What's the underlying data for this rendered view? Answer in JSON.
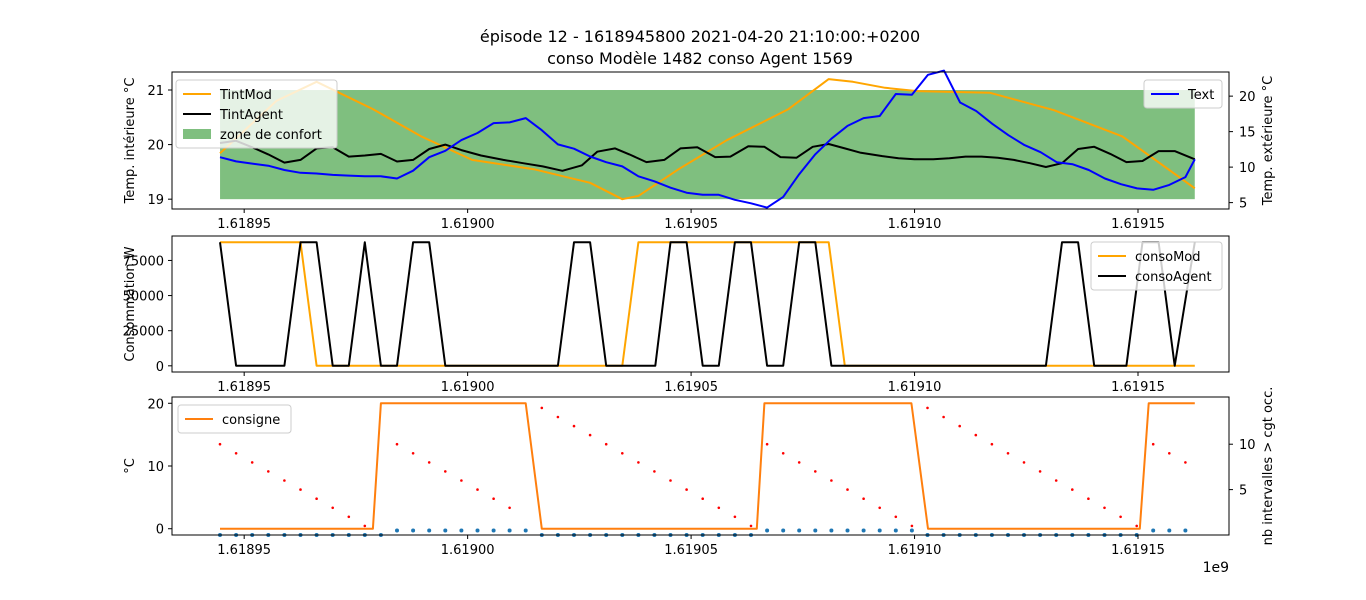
{
  "figure": {
    "title_line1": "épisode 12 - 1618945800 2021-04-20 21:10:00:+0200",
    "title_line2": "conso Modèle 1482 conso Agent 1569",
    "x_offset_label": "1e9"
  },
  "chart_data": [
    {
      "type": "line",
      "panel": "temperatures",
      "x_tick_labels": [
        "1.61895",
        "1.61900",
        "1.61905",
        "1.61910",
        "1.61915"
      ],
      "x_ticks": [
        1618950000,
        1619000000,
        1619050000,
        1619100000,
        1619150000
      ],
      "xlim": [
        1618933850,
        1619170360
      ],
      "ylabel": "Temp. intérieure °C",
      "ylim": [
        18.82,
        21.33
      ],
      "y_ticks": [
        19,
        20,
        21
      ],
      "ylabel_right": "Temp. extérieure °C",
      "ylim_right": [
        4.1,
        23.4
      ],
      "y_ticks_right": [
        5,
        10,
        15,
        20
      ],
      "comfort_zone": {
        "name": "zone de confort",
        "low": 19,
        "high": 21,
        "x_start": 1618944600,
        "x_end": 1619162700,
        "color": "#7fbf7f"
      },
      "legend_left": "top-left",
      "legend_right": "top-right",
      "series": [
        {
          "name": "TintMod",
          "axis": "left",
          "color": "#ffa500",
          "x": [
            1618944600,
            1618957200,
            1618966200,
            1618978800,
            1618989600,
            1619001000,
            1619014800,
            1619027400,
            1619034600,
            1619038200,
            1619047200,
            1619058000,
            1619071800,
            1619080800,
            1619086200,
            1619093400,
            1619100600,
            1619116800,
            1619131200,
            1619146500,
            1619162700
          ],
          "y": [
            19.84,
            20.8,
            21.15,
            20.65,
            20.15,
            19.72,
            19.55,
            19.3,
            19.0,
            19.06,
            19.55,
            20.08,
            20.65,
            21.2,
            21.15,
            21.04,
            20.98,
            20.95,
            20.63,
            20.15,
            19.2
          ]
        },
        {
          "name": "TintAgent",
          "axis": "left",
          "color": "#000000",
          "x": [
            1618944600,
            1618948200,
            1618951800,
            1618955400,
            1618959000,
            1618962600,
            1618966200,
            1618969800,
            1618973400,
            1618977000,
            1618980600,
            1618984200,
            1618987800,
            1618991400,
            1618995000,
            1618998600,
            1619003000,
            1619008000,
            1619012400,
            1619016800,
            1619021200,
            1619025600,
            1619029000,
            1619033000,
            1619036200,
            1619040000,
            1619044000,
            1619047600,
            1619051400,
            1619055400,
            1619058800,
            1619062800,
            1619066400,
            1619070000,
            1619073600,
            1619077200,
            1619080800,
            1619084400,
            1619088000,
            1619092800,
            1619096400,
            1619100000,
            1619104200,
            1619107800,
            1619111400,
            1619115000,
            1619118600,
            1619122200,
            1619125800,
            1619129400,
            1619133000,
            1619136600,
            1619140200,
            1619143800,
            1619147400,
            1619151000,
            1619154600,
            1619158200,
            1619162700
          ],
          "y": [
            20.03,
            20.07,
            19.95,
            19.82,
            19.67,
            19.72,
            19.93,
            19.95,
            19.78,
            19.8,
            19.83,
            19.69,
            19.72,
            19.92,
            20.0,
            19.9,
            19.8,
            19.72,
            19.66,
            19.6,
            19.52,
            19.62,
            19.87,
            19.93,
            19.82,
            19.68,
            19.72,
            19.93,
            19.95,
            19.77,
            19.78,
            19.97,
            19.96,
            19.77,
            19.76,
            19.96,
            20.01,
            19.93,
            19.85,
            19.79,
            19.75,
            19.73,
            19.73,
            19.75,
            19.78,
            19.78,
            19.76,
            19.72,
            19.66,
            19.59,
            19.66,
            19.92,
            19.96,
            19.83,
            19.68,
            19.7,
            19.88,
            19.88,
            19.73
          ]
        },
        {
          "name": "Text",
          "axis": "right",
          "color": "#0000ff",
          "x": [
            1618944600,
            1618948200,
            1618951800,
            1618955400,
            1618959000,
            1618962600,
            1618966200,
            1618969800,
            1618973400,
            1618977000,
            1618980600,
            1618984200,
            1618987800,
            1618991400,
            1618995000,
            1618998600,
            1619002200,
            1619005800,
            1619009400,
            1619013000,
            1619016600,
            1619020200,
            1619023800,
            1619027400,
            1619031000,
            1619034600,
            1619038200,
            1619041800,
            1619045400,
            1619049000,
            1619052600,
            1619056200,
            1619059800,
            1619063400,
            1619067000,
            1619070600,
            1619074200,
            1619077800,
            1619081400,
            1619085000,
            1619088600,
            1619092200,
            1619095800,
            1619099400,
            1619103000,
            1619106600,
            1619110200,
            1619113800,
            1619117400,
            1619121000,
            1619124600,
            1619128200,
            1619131800,
            1619135400,
            1619139000,
            1619142600,
            1619146200,
            1619149800,
            1619153400,
            1619157000,
            1619160600,
            1619162700
          ],
          "y": [
            11.4,
            10.8,
            10.5,
            10.2,
            9.6,
            9.2,
            9.1,
            8.9,
            8.8,
            8.7,
            8.7,
            8.4,
            9.5,
            11.4,
            12.3,
            13.8,
            14.8,
            16.2,
            16.3,
            16.9,
            15.2,
            13.2,
            12.6,
            11.5,
            10.7,
            10.1,
            8.7,
            8.0,
            7.1,
            6.4,
            6.1,
            6.1,
            5.4,
            4.9,
            4.3,
            5.8,
            9.0,
            11.8,
            14.0,
            15.8,
            16.9,
            17.2,
            20.3,
            20.2,
            23.0,
            23.6,
            19.1,
            17.9,
            16.1,
            14.5,
            13.1,
            12.1,
            10.7,
            10.4,
            9.6,
            8.4,
            7.6,
            7.0,
            6.8,
            7.5,
            8.6,
            11.1
          ]
        }
      ]
    },
    {
      "type": "line",
      "panel": "consumption",
      "x_tick_labels": [
        "1.61895",
        "1.61900",
        "1.61905",
        "1.61910",
        "1.61915"
      ],
      "x_ticks": [
        1618950000,
        1619000000,
        1619050000,
        1619100000,
        1619150000
      ],
      "xlim": [
        1618933850,
        1619170360
      ],
      "ylabel": "Consommation W",
      "ylim": [
        -4400,
        92400
      ],
      "y_ticks": [
        0,
        25000,
        50000,
        75000
      ],
      "legend": "top-right",
      "series": [
        {
          "name": "consoMod",
          "color": "#ffa500",
          "x": [
            1618944600,
            1618962600,
            1618966200,
            1619034600,
            1619038200,
            1619080800,
            1619084400,
            1619162700
          ],
          "y": [
            88000,
            88000,
            0,
            0,
            88000,
            88000,
            0,
            0
          ]
        },
        {
          "name": "consoAgent",
          "color": "#000000",
          "x": [
            1618944600,
            1618948200,
            1618959000,
            1618962600,
            1618966200,
            1618969800,
            1618973400,
            1618977000,
            1618980600,
            1618984200,
            1618987800,
            1618991400,
            1618995000,
            1618998600,
            1619020200,
            1619023800,
            1619027400,
            1619031000,
            1619042000,
            1619045400,
            1619049000,
            1619052600,
            1619056200,
            1619059800,
            1619063400,
            1619067000,
            1619070600,
            1619074200,
            1619077800,
            1619081400,
            1619129400,
            1619133000,
            1619136600,
            1619140200,
            1619147400,
            1619151000,
            1619154600,
            1619158200,
            1619162700
          ],
          "y": [
            88000,
            0,
            0,
            88000,
            88000,
            0,
            0,
            88000,
            0,
            0,
            88000,
            88000,
            0,
            0,
            0,
            88000,
            88000,
            0,
            0,
            88000,
            88000,
            0,
            0,
            88000,
            88000,
            0,
            0,
            88000,
            88000,
            0,
            0,
            88000,
            88000,
            0,
            0,
            88000,
            88000,
            0,
            88000
          ]
        }
      ]
    },
    {
      "type": "line",
      "panel": "setpoint",
      "x_tick_labels": [
        "1.61895",
        "1.61900",
        "1.61905",
        "1.61910",
        "1.61915"
      ],
      "x_ticks": [
        1618950000,
        1619000000,
        1619050000,
        1619100000,
        1619150000
      ],
      "xlim": [
        1618933850,
        1619170360
      ],
      "ylabel": "°C",
      "ylim": [
        -1,
        21
      ],
      "y_ticks": [
        0,
        10,
        20
      ],
      "ylabel_right": "nb intervalles > cgt occ.",
      "ylim_right": [
        0,
        15.2
      ],
      "y_ticks_right": [
        5,
        10
      ],
      "legend": "top-left",
      "series": [
        {
          "name": "consigne",
          "color": "#ff7f0e",
          "x": [
            1618944600,
            1618978800,
            1618980600,
            1619013000,
            1619016600,
            1619064700,
            1619066400,
            1619099300,
            1619103000,
            1619150400,
            1619152400,
            1619162700
          ],
          "y": [
            0,
            0,
            20,
            20,
            0,
            0,
            20,
            20,
            0,
            0,
            20,
            20
          ]
        }
      ],
      "scatter": [
        {
          "name": "",
          "color": "#ff0000",
          "axis": "right",
          "x": [
            1618944600,
            1618948200,
            1618951800,
            1618955400,
            1618959000,
            1618962600,
            1618966200,
            1618969800,
            1618973400,
            1618977000,
            1618980600,
            1618984200,
            1618987800,
            1618991400,
            1618995000,
            1618998600,
            1619002200,
            1619005800,
            1619009400,
            1619016600,
            1619020200,
            1619023800,
            1619027400,
            1619031000,
            1619034600,
            1619038200,
            1619041800,
            1619045400,
            1619049000,
            1619052600,
            1619056200,
            1619059800,
            1619063400,
            1619067000,
            1619070600,
            1619074200,
            1619077800,
            1619081400,
            1619085000,
            1619088600,
            1619092200,
            1619095800,
            1619099400,
            1619102900,
            1619106500,
            1619110100,
            1619113700,
            1619117300,
            1619120900,
            1619124500,
            1619128100,
            1619131700,
            1619135300,
            1619138900,
            1619142500,
            1619146100,
            1619149700,
            1619153400,
            1619157000,
            1619160600
          ],
          "y": [
            10,
            9,
            8,
            7,
            6,
            5,
            4,
            3,
            2,
            1,
            0,
            10,
            9,
            8,
            7,
            6,
            5,
            4,
            3,
            14,
            13,
            12,
            11,
            10,
            9,
            8,
            7,
            6,
            5,
            4,
            3,
            2,
            1,
            10,
            9,
            8,
            7,
            6,
            5,
            4,
            3,
            2,
            1,
            14,
            13,
            12,
            11,
            10,
            9,
            8,
            7,
            6,
            5,
            4,
            3,
            2,
            1,
            10,
            9,
            8
          ]
        },
        {
          "name": "",
          "color": "#1f77b4",
          "axis": "right",
          "x": [
            1618944600,
            1618948200,
            1618951800,
            1618955400,
            1618959000,
            1618962600,
            1618966200,
            1618969800,
            1618973400,
            1618977000,
            1618980600,
            1618984200,
            1618987800,
            1618991400,
            1618995000,
            1618998600,
            1619002200,
            1619005800,
            1619009400,
            1619013000,
            1619016600,
            1619020200,
            1619023800,
            1619027400,
            1619031000,
            1619034600,
            1619038200,
            1619041800,
            1619045400,
            1619049000,
            1619052600,
            1619056200,
            1619059800,
            1619063400,
            1619067000,
            1619070600,
            1619074200,
            1619077800,
            1619081400,
            1619085000,
            1619088600,
            1619092200,
            1619095800,
            1619099400,
            1619102900,
            1619106500,
            1619110100,
            1619113700,
            1619117300,
            1619120900,
            1619124500,
            1619128100,
            1619131700,
            1619135300,
            1619138900,
            1619142500,
            1619146100,
            1619149700,
            1619153400,
            1619157000,
            1619160600
          ],
          "y": [
            0,
            0,
            0,
            0,
            0,
            0,
            0,
            0,
            0,
            0,
            0,
            0.5,
            0.5,
            0.5,
            0.5,
            0.5,
            0.5,
            0.5,
            0.5,
            0.5,
            0,
            0,
            0,
            0,
            0,
            0,
            0,
            0,
            0,
            0,
            0,
            0,
            0,
            0,
            0.5,
            0.5,
            0.5,
            0.5,
            0.5,
            0.5,
            0.5,
            0.5,
            0.5,
            0.5,
            0,
            0,
            0,
            0,
            0,
            0,
            0,
            0,
            0,
            0,
            0,
            0,
            0,
            0,
            0.5,
            0.5,
            0.5
          ]
        }
      ]
    }
  ]
}
